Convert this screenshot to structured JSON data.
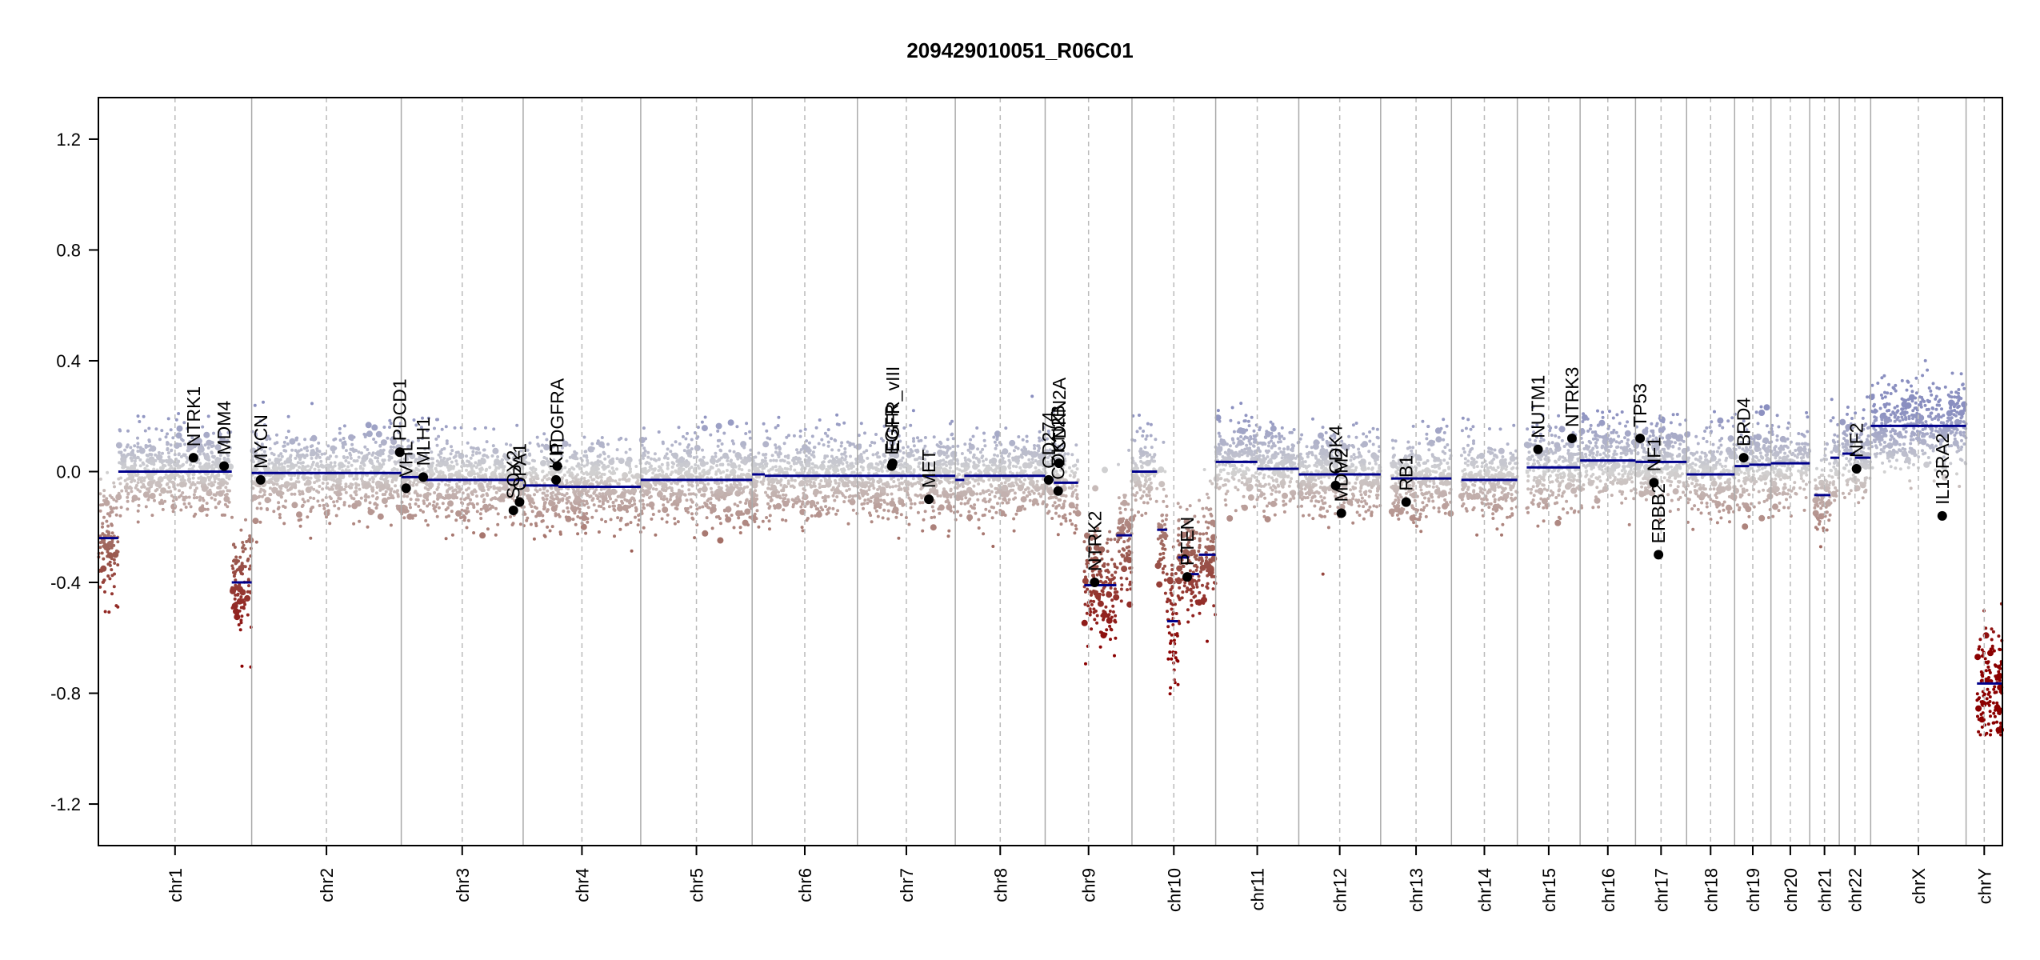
{
  "chart_data": {
    "type": "scatter",
    "title": "209429010051_R06C01",
    "xlabel": "",
    "ylabel": "",
    "ylim": [
      -1.35,
      1.35
    ],
    "y_ticks": [
      -1.2,
      -0.8,
      -0.4,
      0.0,
      0.4,
      0.8,
      1.2
    ],
    "y_tick_labels": [
      "-1.2",
      "-0.8",
      "-0.4",
      "0.0",
      "0.4",
      "0.8",
      "1.2"
    ],
    "grid": false,
    "colors": {
      "gain": "#8a8fc0",
      "neutral": "#d2d2d2",
      "loss": "#9a5a50",
      "deep_loss": "#8b0000",
      "segment": "#00008b",
      "boundary": "#aaaaaa"
    },
    "chromosomes": [
      {
        "name": "chr1",
        "size": 249
      },
      {
        "name": "chr2",
        "size": 243
      },
      {
        "name": "chr3",
        "size": 198
      },
      {
        "name": "chr4",
        "size": 191
      },
      {
        "name": "chr5",
        "size": 181
      },
      {
        "name": "chr6",
        "size": 171
      },
      {
        "name": "chr7",
        "size": 159
      },
      {
        "name": "chr8",
        "size": 146
      },
      {
        "name": "chr9",
        "size": 141
      },
      {
        "name": "chr10",
        "size": 136
      },
      {
        "name": "chr11",
        "size": 135
      },
      {
        "name": "chr12",
        "size": 133
      },
      {
        "name": "chr13",
        "size": 115
      },
      {
        "name": "chr14",
        "size": 107
      },
      {
        "name": "chr15",
        "size": 102
      },
      {
        "name": "chr16",
        "size": 90
      },
      {
        "name": "chr17",
        "size": 83
      },
      {
        "name": "chr18",
        "size": 78
      },
      {
        "name": "chr19",
        "size": 59
      },
      {
        "name": "chr20",
        "size": 63
      },
      {
        "name": "chr21",
        "size": 48
      },
      {
        "name": "chr22",
        "size": 51
      },
      {
        "name": "chrX",
        "size": 155
      },
      {
        "name": "chrY",
        "size": 59
      }
    ],
    "segments": [
      {
        "chrom": "chr1",
        "start": 0.0,
        "end": 0.13,
        "value": -0.24
      },
      {
        "chrom": "chr1",
        "start": 0.13,
        "end": 0.87,
        "value": 0.0
      },
      {
        "chrom": "chr1",
        "start": 0.87,
        "end": 1.0,
        "value": -0.4
      },
      {
        "chrom": "chr2",
        "start": 0.0,
        "end": 1.0,
        "value": -0.005
      },
      {
        "chrom": "chr3",
        "start": 0.0,
        "end": 0.2,
        "value": -0.02
      },
      {
        "chrom": "chr3",
        "start": 0.2,
        "end": 1.0,
        "value": -0.03
      },
      {
        "chrom": "chr4",
        "start": 0.0,
        "end": 0.3,
        "value": -0.05
      },
      {
        "chrom": "chr4",
        "start": 0.3,
        "end": 1.0,
        "value": -0.055
      },
      {
        "chrom": "chr5",
        "start": 0.0,
        "end": 1.0,
        "value": -0.03
      },
      {
        "chrom": "chr6",
        "start": 0.0,
        "end": 0.12,
        "value": -0.01
      },
      {
        "chrom": "chr6",
        "start": 0.12,
        "end": 1.0,
        "value": -0.015
      },
      {
        "chrom": "chr7",
        "start": 0.0,
        "end": 1.0,
        "value": -0.015
      },
      {
        "chrom": "chr8",
        "start": 0.0,
        "end": 0.1,
        "value": -0.03
      },
      {
        "chrom": "chr8",
        "start": 0.1,
        "end": 1.0,
        "value": -0.015
      },
      {
        "chrom": "chr9",
        "start": 0.0,
        "end": 0.1,
        "value": -0.03
      },
      {
        "chrom": "chr9",
        "start": 0.1,
        "end": 0.38,
        "value": -0.04
      },
      {
        "chrom": "chr9",
        "start": 0.45,
        "end": 0.82,
        "value": -0.41
      },
      {
        "chrom": "chr9",
        "start": 0.82,
        "end": 1.0,
        "value": -0.23
      },
      {
        "chrom": "chr10",
        "start": 0.0,
        "end": 0.3,
        "value": 0.0
      },
      {
        "chrom": "chr10",
        "start": 0.3,
        "end": 0.42,
        "value": -0.21
      },
      {
        "chrom": "chr10",
        "start": 0.42,
        "end": 0.55,
        "value": -0.54
      },
      {
        "chrom": "chr10",
        "start": 0.55,
        "end": 0.68,
        "value": -0.31
      },
      {
        "chrom": "chr10",
        "start": 0.68,
        "end": 0.8,
        "value": -0.37
      },
      {
        "chrom": "chr10",
        "start": 0.8,
        "end": 1.0,
        "value": -0.3
      },
      {
        "chrom": "chr11",
        "start": 0.0,
        "end": 0.5,
        "value": 0.035
      },
      {
        "chrom": "chr11",
        "start": 0.5,
        "end": 1.0,
        "value": 0.01
      },
      {
        "chrom": "chr12",
        "start": 0.0,
        "end": 1.0,
        "value": -0.01
      },
      {
        "chrom": "chr13",
        "start": 0.15,
        "end": 1.0,
        "value": -0.025
      },
      {
        "chrom": "chr14",
        "start": 0.15,
        "end": 1.0,
        "value": -0.03
      },
      {
        "chrom": "chr15",
        "start": 0.15,
        "end": 1.0,
        "value": 0.015
      },
      {
        "chrom": "chr16",
        "start": 0.0,
        "end": 1.0,
        "value": 0.04
      },
      {
        "chrom": "chr17",
        "start": 0.0,
        "end": 1.0,
        "value": 0.035
      },
      {
        "chrom": "chr18",
        "start": 0.0,
        "end": 1.0,
        "value": -0.01
      },
      {
        "chrom": "chr19",
        "start": 0.0,
        "end": 0.4,
        "value": 0.02
      },
      {
        "chrom": "chr19",
        "start": 0.4,
        "end": 1.0,
        "value": 0.025
      },
      {
        "chrom": "chr20",
        "start": 0.0,
        "end": 1.0,
        "value": 0.03
      },
      {
        "chrom": "chr21",
        "start": 0.15,
        "end": 0.7,
        "value": -0.085
      },
      {
        "chrom": "chr21",
        "start": 0.7,
        "end": 1.0,
        "value": 0.05
      },
      {
        "chrom": "chr22",
        "start": 0.1,
        "end": 0.5,
        "value": 0.065
      },
      {
        "chrom": "chr22",
        "start": 0.5,
        "end": 1.0,
        "value": 0.05
      },
      {
        "chrom": "chrX",
        "start": 0.0,
        "end": 1.0,
        "value": 0.165
      },
      {
        "chrom": "chrY",
        "start": 0.3,
        "end": 1.0,
        "value": -0.765
      }
    ],
    "genes": [
      {
        "name": "NTRK1",
        "chrom": "chr1",
        "pos": 0.62,
        "value": 0.05
      },
      {
        "name": "MDM4",
        "chrom": "chr1",
        "pos": 0.82,
        "value": 0.02
      },
      {
        "name": "MYCN",
        "chrom": "chr2",
        "pos": 0.06,
        "value": -0.03
      },
      {
        "name": "PDCD1",
        "chrom": "chr2",
        "pos": 0.99,
        "value": 0.07
      },
      {
        "name": "VHL",
        "chrom": "chr3",
        "pos": 0.04,
        "value": -0.06
      },
      {
        "name": "MLH1",
        "chrom": "chr3",
        "pos": 0.18,
        "value": -0.02
      },
      {
        "name": "SOX2",
        "chrom": "chr3",
        "pos": 0.92,
        "value": -0.14
      },
      {
        "name": "OPA1",
        "chrom": "chr3",
        "pos": 0.97,
        "value": -0.11
      },
      {
        "name": "KIT",
        "chrom": "chr4",
        "pos": 0.28,
        "value": -0.03
      },
      {
        "name": "PDGFRA",
        "chrom": "chr4",
        "pos": 0.29,
        "value": 0.02
      },
      {
        "name": "EGFR",
        "chrom": "chr7",
        "pos": 0.35,
        "value": 0.02
      },
      {
        "name": "EGFR_vIII",
        "chrom": "chr7",
        "pos": 0.36,
        "value": 0.03
      },
      {
        "name": "MET",
        "chrom": "chr7",
        "pos": 0.73,
        "value": -0.1
      },
      {
        "name": "CD274",
        "chrom": "chr9",
        "pos": 0.04,
        "value": -0.03
      },
      {
        "name": "CDKN2B",
        "chrom": "chr9",
        "pos": 0.15,
        "value": -0.07
      },
      {
        "name": "CDKN2A",
        "chrom": "chr9",
        "pos": 0.16,
        "value": 0.03
      },
      {
        "name": "NTRK2",
        "chrom": "chr9",
        "pos": 0.57,
        "value": -0.4
      },
      {
        "name": "PTEN",
        "chrom": "chr10",
        "pos": 0.66,
        "value": -0.38
      },
      {
        "name": "CDK4",
        "chrom": "chr12",
        "pos": 0.45,
        "value": -0.05
      },
      {
        "name": "MDM2",
        "chrom": "chr12",
        "pos": 0.52,
        "value": -0.15
      },
      {
        "name": "RB1",
        "chrom": "chr13",
        "pos": 0.36,
        "value": -0.11
      },
      {
        "name": "NUTM1",
        "chrom": "chr15",
        "pos": 0.33,
        "value": 0.08
      },
      {
        "name": "NTRK3",
        "chrom": "chr15",
        "pos": 0.87,
        "value": 0.12
      },
      {
        "name": "TP53",
        "chrom": "chr17",
        "pos": 0.09,
        "value": 0.12
      },
      {
        "name": "NF1",
        "chrom": "chr17",
        "pos": 0.36,
        "value": -0.04
      },
      {
        "name": "ERBB2",
        "chrom": "chr17",
        "pos": 0.45,
        "value": -0.3
      },
      {
        "name": "BRD4",
        "chrom": "chr19",
        "pos": 0.25,
        "value": 0.05
      },
      {
        "name": "NF2",
        "chrom": "chr22",
        "pos": 0.55,
        "value": 0.01
      },
      {
        "name": "IL13RA2",
        "chrom": "chrX",
        "pos": 0.75,
        "value": -0.16
      }
    ]
  }
}
